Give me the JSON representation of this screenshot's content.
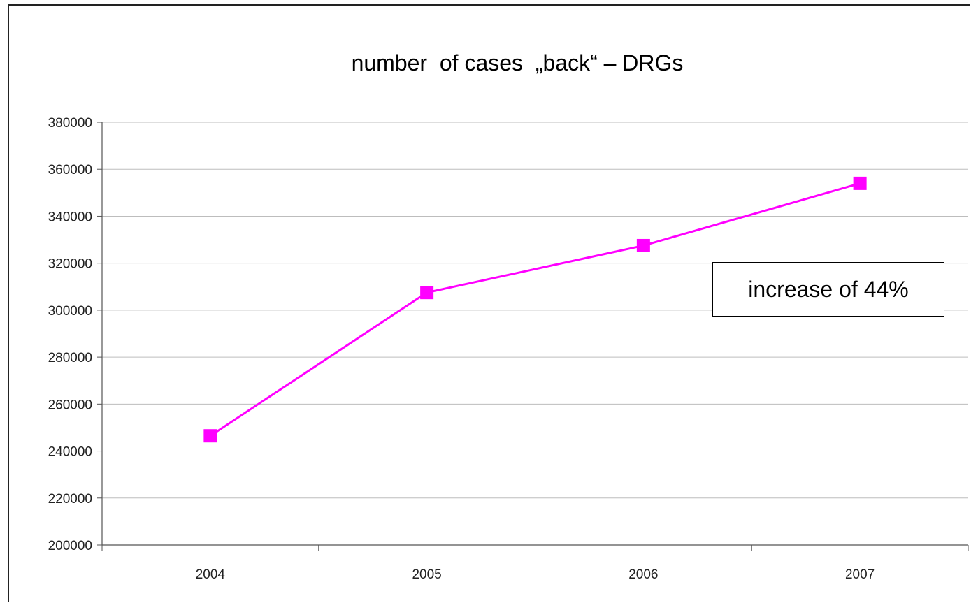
{
  "chart_data": {
    "type": "line",
    "title": "number  of cases  „back“ – DRGs",
    "x": [
      "2004",
      "2005",
      "2006",
      "2007"
    ],
    "series": [
      {
        "values": [
          246500,
          307500,
          327500,
          354000
        ],
        "color": "#ff00ff",
        "marker": "square"
      }
    ],
    "ylim": [
      200000,
      380000
    ],
    "yticks": [
      200000,
      220000,
      240000,
      260000,
      280000,
      300000,
      320000,
      340000,
      360000,
      380000
    ],
    "grid": true,
    "annotation": "increase of 44%"
  }
}
